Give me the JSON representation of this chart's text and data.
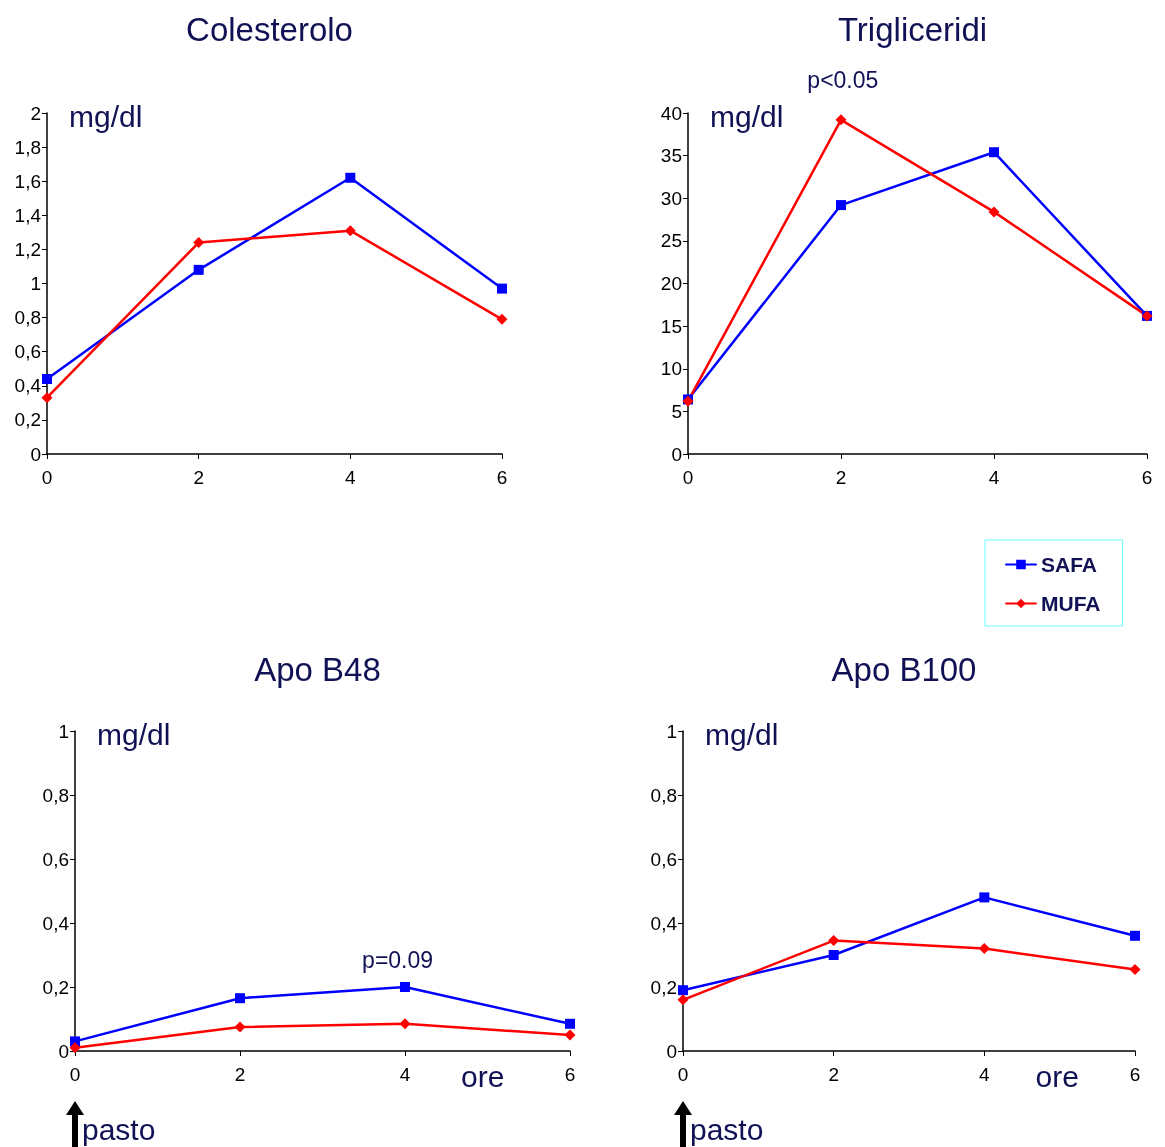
{
  "chart_data": [
    {
      "type": "line",
      "title": "Colesterolo",
      "ylabel": "mg/dl",
      "x": [
        0,
        2,
        4,
        6
      ],
      "xlim": [
        0,
        6
      ],
      "xticks": [
        0,
        2,
        4,
        6
      ],
      "ylim": [
        0,
        2
      ],
      "yticks": [
        0,
        {
          "value": 0.2,
          "label": "0,2"
        },
        {
          "value": 0.4,
          "label": "0,4"
        },
        {
          "value": 0.6,
          "label": "0,6"
        },
        {
          "value": 0.8,
          "label": "0,8"
        },
        1,
        {
          "value": 1.2,
          "label": "1,2"
        },
        {
          "value": 1.4,
          "label": "1,4"
        },
        {
          "value": 1.6,
          "label": "1,6"
        },
        {
          "value": 1.8,
          "label": "1,8"
        },
        2
      ],
      "grid": false,
      "series": [
        {
          "color": "#0000ff",
          "marker": "square",
          "values": [
            0.44,
            1.08,
            1.62,
            0.97
          ]
        },
        {
          "color": "#ff0000",
          "marker": "diamond",
          "values": [
            0.33,
            1.24,
            1.31,
            0.79
          ]
        }
      ]
    },
    {
      "type": "line",
      "title": "Trigliceridi",
      "ylabel": "mg/dl",
      "annotations": [
        "p<0.05"
      ],
      "x": [
        0,
        2,
        4,
        6
      ],
      "xlim": [
        0,
        6
      ],
      "xticks": [
        0,
        2,
        4,
        6
      ],
      "ylim": [
        0,
        40
      ],
      "yticks": [
        0,
        5,
        10,
        15,
        20,
        25,
        30,
        35,
        40
      ],
      "grid": false,
      "legend": "bottom right",
      "series": [
        {
          "name": "SAFA",
          "color": "#0000ff",
          "marker": "square",
          "values": [
            6.4,
            29.2,
            35.4,
            16.2
          ]
        },
        {
          "name": "MUFA",
          "color": "#ff0000",
          "marker": "diamond",
          "values": [
            6.2,
            39.2,
            28.4,
            16.2
          ]
        }
      ]
    },
    {
      "type": "line",
      "title": "Apo B48",
      "ylabel": "mg/dl",
      "xlabel": "ore",
      "annotations": [
        "p=0.09",
        "pasto"
      ],
      "x": [
        0,
        2,
        4,
        6
      ],
      "xlim": [
        0,
        6
      ],
      "xticks": [
        0,
        2,
        4,
        6
      ],
      "ylim": [
        0,
        1
      ],
      "yticks": [
        0,
        {
          "value": 0.2,
          "label": "0,2"
        },
        {
          "value": 0.4,
          "label": "0,4"
        },
        {
          "value": 0.6,
          "label": "0,6"
        },
        {
          "value": 0.8,
          "label": "0,8"
        },
        1
      ],
      "grid": false,
      "series": [
        {
          "color": "#0000ff",
          "marker": "square",
          "values": [
            0.03,
            0.165,
            0.2,
            0.085
          ]
        },
        {
          "color": "#ff0000",
          "marker": "diamond",
          "values": [
            0.01,
            0.075,
            0.085,
            0.05
          ]
        }
      ]
    },
    {
      "type": "line",
      "title": "Apo B100",
      "ylabel": "mg/dl",
      "xlabel": "ore",
      "annotations": [
        "pasto"
      ],
      "x": [
        0,
        2,
        4,
        6
      ],
      "xlim": [
        0,
        6
      ],
      "xticks": [
        0,
        2,
        4,
        6
      ],
      "ylim": [
        0,
        1
      ],
      "yticks": [
        0,
        {
          "value": 0.2,
          "label": "0,2"
        },
        {
          "value": 0.4,
          "label": "0,4"
        },
        {
          "value": 0.6,
          "label": "0,6"
        },
        {
          "value": 0.8,
          "label": "0,8"
        },
        1
      ],
      "grid": false,
      "series": [
        {
          "color": "#0000ff",
          "marker": "square",
          "values": [
            0.19,
            0.3,
            0.48,
            0.36
          ]
        },
        {
          "color": "#ff0000",
          "marker": "diamond",
          "values": [
            0.16,
            0.345,
            0.32,
            0.255
          ]
        }
      ]
    }
  ]
}
